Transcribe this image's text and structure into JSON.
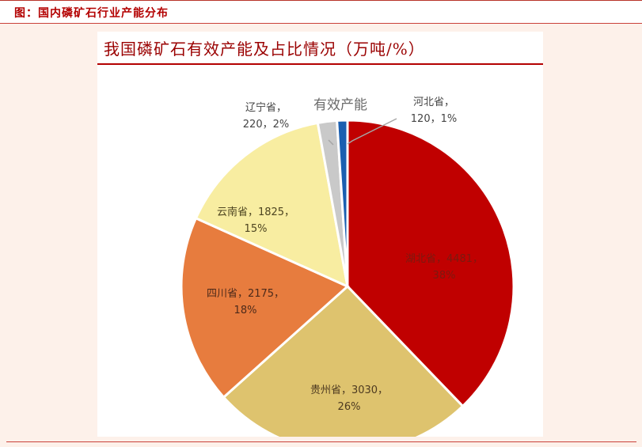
{
  "figure_caption": "图：国内磷矿石行业产能分布",
  "chart_data": {
    "type": "pie",
    "title": "我国磷矿石有效产能及占比情况（万吨/%）",
    "series_label": "有效产能",
    "slices": [
      {
        "name": "湖北省",
        "value": 4481,
        "percent": "38%",
        "color": "#c00000"
      },
      {
        "name": "贵州省",
        "value": 3030,
        "percent": "26%",
        "color": "#dec36e"
      },
      {
        "name": "四川省",
        "value": 2175,
        "percent": "18%",
        "color": "#e77c3e"
      },
      {
        "name": "云南省",
        "value": 1825,
        "percent": "15%",
        "color": "#f8eda1"
      },
      {
        "name": "辽宁省",
        "value": 220,
        "percent": "2%",
        "color": "#c9c9c9"
      },
      {
        "name": "河北省",
        "value": 120,
        "percent": "1%",
        "color": "#1b5fb0"
      }
    ],
    "label_lines": {
      "湖北省": [
        "湖北省，4481，",
        "38%"
      ],
      "贵州省": [
        "贵州省，3030，",
        "26%"
      ],
      "四川省": [
        "四川省，2175，",
        "18%"
      ],
      "云南省": [
        "云南省，1825，",
        "15%"
      ],
      "辽宁省": [
        "辽宁省，",
        "220，2%"
      ],
      "河北省": [
        "河北省，",
        "120，1%"
      ]
    }
  }
}
